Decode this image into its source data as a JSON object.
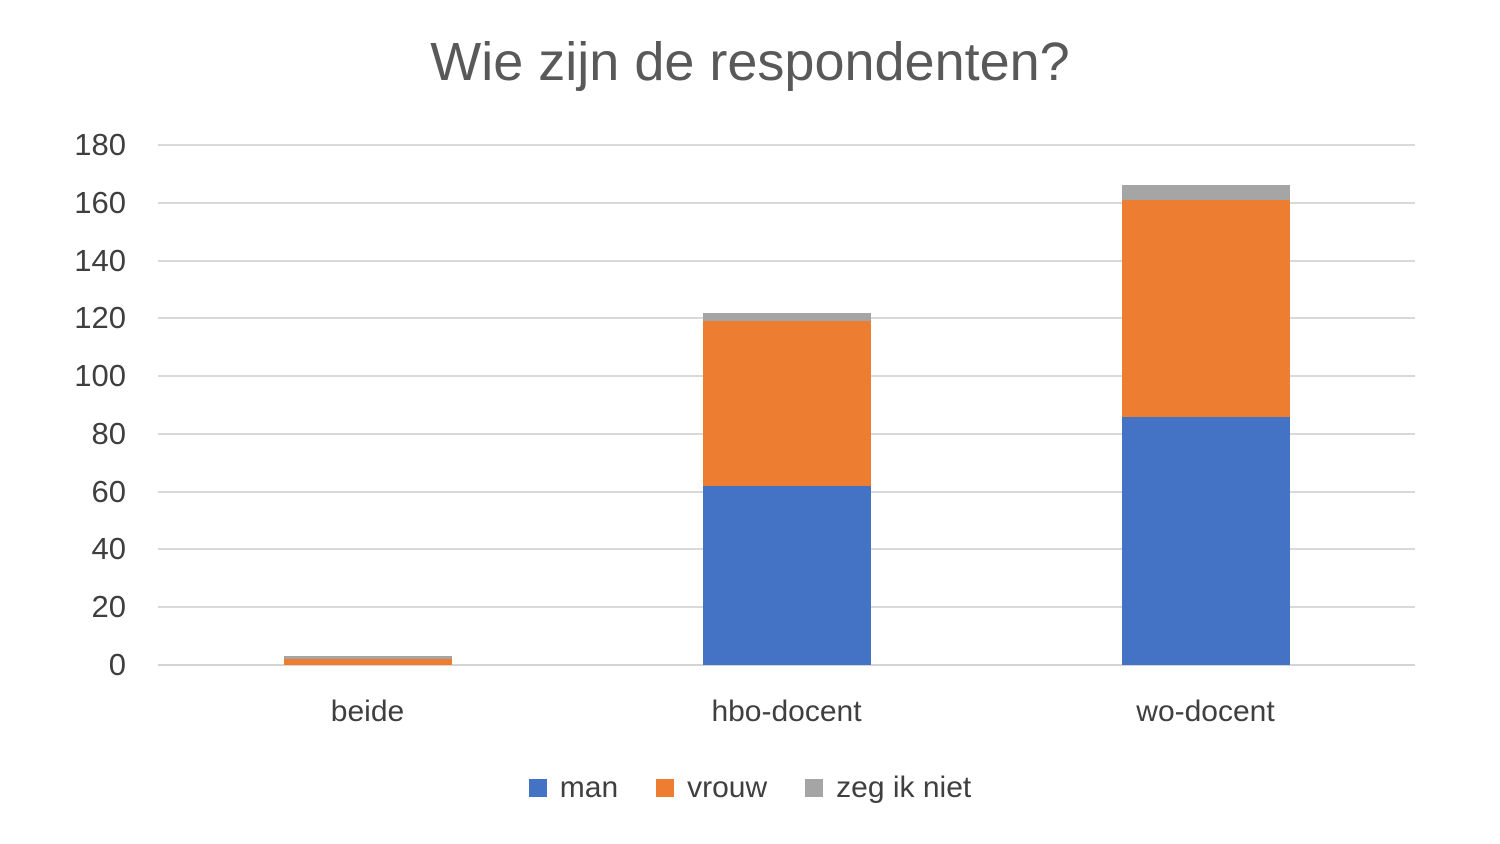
{
  "chart_data": {
    "type": "bar",
    "stacked": true,
    "title": "Wie zijn de respondenten?",
    "categories": [
      "beide",
      "hbo-docent",
      "wo-docent"
    ],
    "series": [
      {
        "name": "man",
        "color": "#4472C4",
        "values": [
          0,
          62,
          86
        ]
      },
      {
        "name": "vrouw",
        "color": "#ED7D31",
        "values": [
          2,
          57,
          75
        ]
      },
      {
        "name": "zeg ik niet",
        "color": "#A5A5A5",
        "values": [
          1,
          3,
          5
        ]
      }
    ],
    "xlabel": "",
    "ylabel": "",
    "ylim": [
      0,
      180
    ],
    "ytick_step": 20,
    "grid": true,
    "legend_position": "bottom"
  },
  "colors": {
    "background": "#FFFFFF",
    "gridline": "#D9D9D9",
    "axis_line": "#D4D4D4",
    "title_text": "#595959",
    "axis_text": "#3F3F3F"
  }
}
